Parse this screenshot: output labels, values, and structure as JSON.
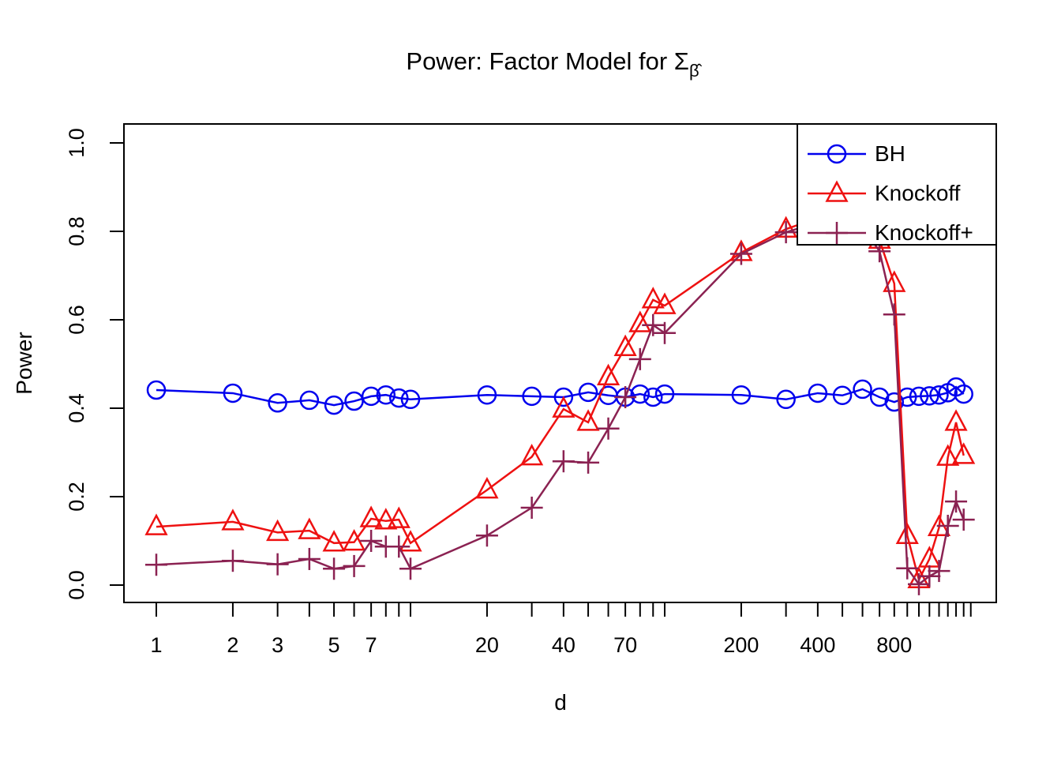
{
  "title": {
    "prefix": "Power: Factor Model for ",
    "sigma": "Σ",
    "subscript": "β̂"
  },
  "colors": {
    "bh": "#0000EE",
    "knockoff": "#EE1111",
    "knockoff_plus": "#8B2252",
    "axis": "#000000",
    "background": "#ffffff"
  },
  "y_axis": {
    "label": "Power",
    "range": [
      0,
      1
    ],
    "ticks": [
      {
        "value": 0.0,
        "label": "0.0"
      },
      {
        "value": 0.2,
        "label": "0.2"
      },
      {
        "value": 0.4,
        "label": "0.4"
      },
      {
        "value": 0.6,
        "label": "0.6"
      },
      {
        "value": 0.8,
        "label": "0.8"
      },
      {
        "value": 1.0,
        "label": "1.0"
      }
    ]
  },
  "x_axis": {
    "label": "d",
    "scale": "log",
    "range": [
      1,
      1500
    ],
    "minor_ticks": [
      1,
      2,
      3,
      4,
      5,
      6,
      7,
      8,
      9,
      10,
      20,
      30,
      40,
      50,
      60,
      70,
      80,
      90,
      100,
      200,
      300,
      400,
      500,
      600,
      700,
      800,
      900,
      1000,
      1100,
      1200,
      1300,
      1400,
      1500,
      1600
    ],
    "labeled_ticks": [
      {
        "value": 1,
        "label": "1"
      },
      {
        "value": 2,
        "label": "2"
      },
      {
        "value": 3,
        "label": "3"
      },
      {
        "value": 5,
        "label": "5"
      },
      {
        "value": 7,
        "label": "7"
      },
      {
        "value": 20,
        "label": "20"
      },
      {
        "value": 40,
        "label": "40"
      },
      {
        "value": 70,
        "label": "70"
      },
      {
        "value": 200,
        "label": "200"
      },
      {
        "value": 400,
        "label": "400"
      },
      {
        "value": 800,
        "label": "800"
      }
    ]
  },
  "legend": {
    "entries": [
      {
        "label": "BH",
        "marker": "circle",
        "color": "#0000EE"
      },
      {
        "label": "Knockoff",
        "marker": "triangle",
        "color": "#EE1111"
      },
      {
        "label": "Knockoff+",
        "marker": "plus",
        "color": "#8B2252"
      }
    ]
  },
  "chart_data": {
    "type": "line",
    "title": "Power: Factor Model for Σβ̂",
    "xlabel": "d",
    "ylabel": "Power",
    "x_scale": "log",
    "xlim": [
      1,
      1500
    ],
    "ylim": [
      0,
      1
    ],
    "grid": false,
    "legend_position": "top-right",
    "x": [
      1,
      2,
      3,
      4,
      5,
      6,
      7,
      8,
      9,
      10,
      20,
      30,
      40,
      50,
      60,
      70,
      80,
      90,
      100,
      200,
      300,
      400,
      500,
      600,
      700,
      800,
      900,
      1000,
      1100,
      1200,
      1300,
      1400,
      1500
    ],
    "series": [
      {
        "name": "BH",
        "marker": "circle",
        "color": "#0000EE",
        "values": [
          0.441,
          0.434,
          0.412,
          0.418,
          0.407,
          0.416,
          0.427,
          0.43,
          0.423,
          0.42,
          0.43,
          0.427,
          0.425,
          0.436,
          0.429,
          0.425,
          0.432,
          0.425,
          0.432,
          0.43,
          0.42,
          0.434,
          0.429,
          0.443,
          0.425,
          0.414,
          0.425,
          0.427,
          0.428,
          0.43,
          0.435,
          0.448,
          0.432
        ]
      },
      {
        "name": "Knockoff",
        "marker": "triangle",
        "color": "#EE1111",
        "values": [
          0.132,
          0.143,
          0.119,
          0.123,
          0.095,
          0.097,
          0.15,
          0.145,
          0.148,
          0.095,
          0.215,
          0.29,
          0.398,
          0.368,
          0.471,
          0.537,
          0.591,
          0.645,
          0.632,
          0.752,
          0.805,
          0.83,
          0.85,
          0.825,
          0.78,
          0.682,
          0.112,
          0.012,
          0.059,
          0.13,
          0.289,
          0.368,
          0.293
        ]
      },
      {
        "name": "Knockoff+",
        "marker": "plus",
        "color": "#8B2252",
        "values": [
          0.046,
          0.055,
          0.047,
          0.059,
          0.037,
          0.043,
          0.1,
          0.087,
          0.087,
          0.037,
          0.112,
          0.175,
          0.28,
          0.277,
          0.354,
          0.425,
          0.511,
          0.588,
          0.57,
          0.749,
          0.798,
          0.82,
          0.84,
          0.81,
          0.755,
          0.612,
          0.038,
          0.002,
          0.02,
          0.032,
          0.134,
          0.189,
          0.148
        ]
      }
    ]
  }
}
